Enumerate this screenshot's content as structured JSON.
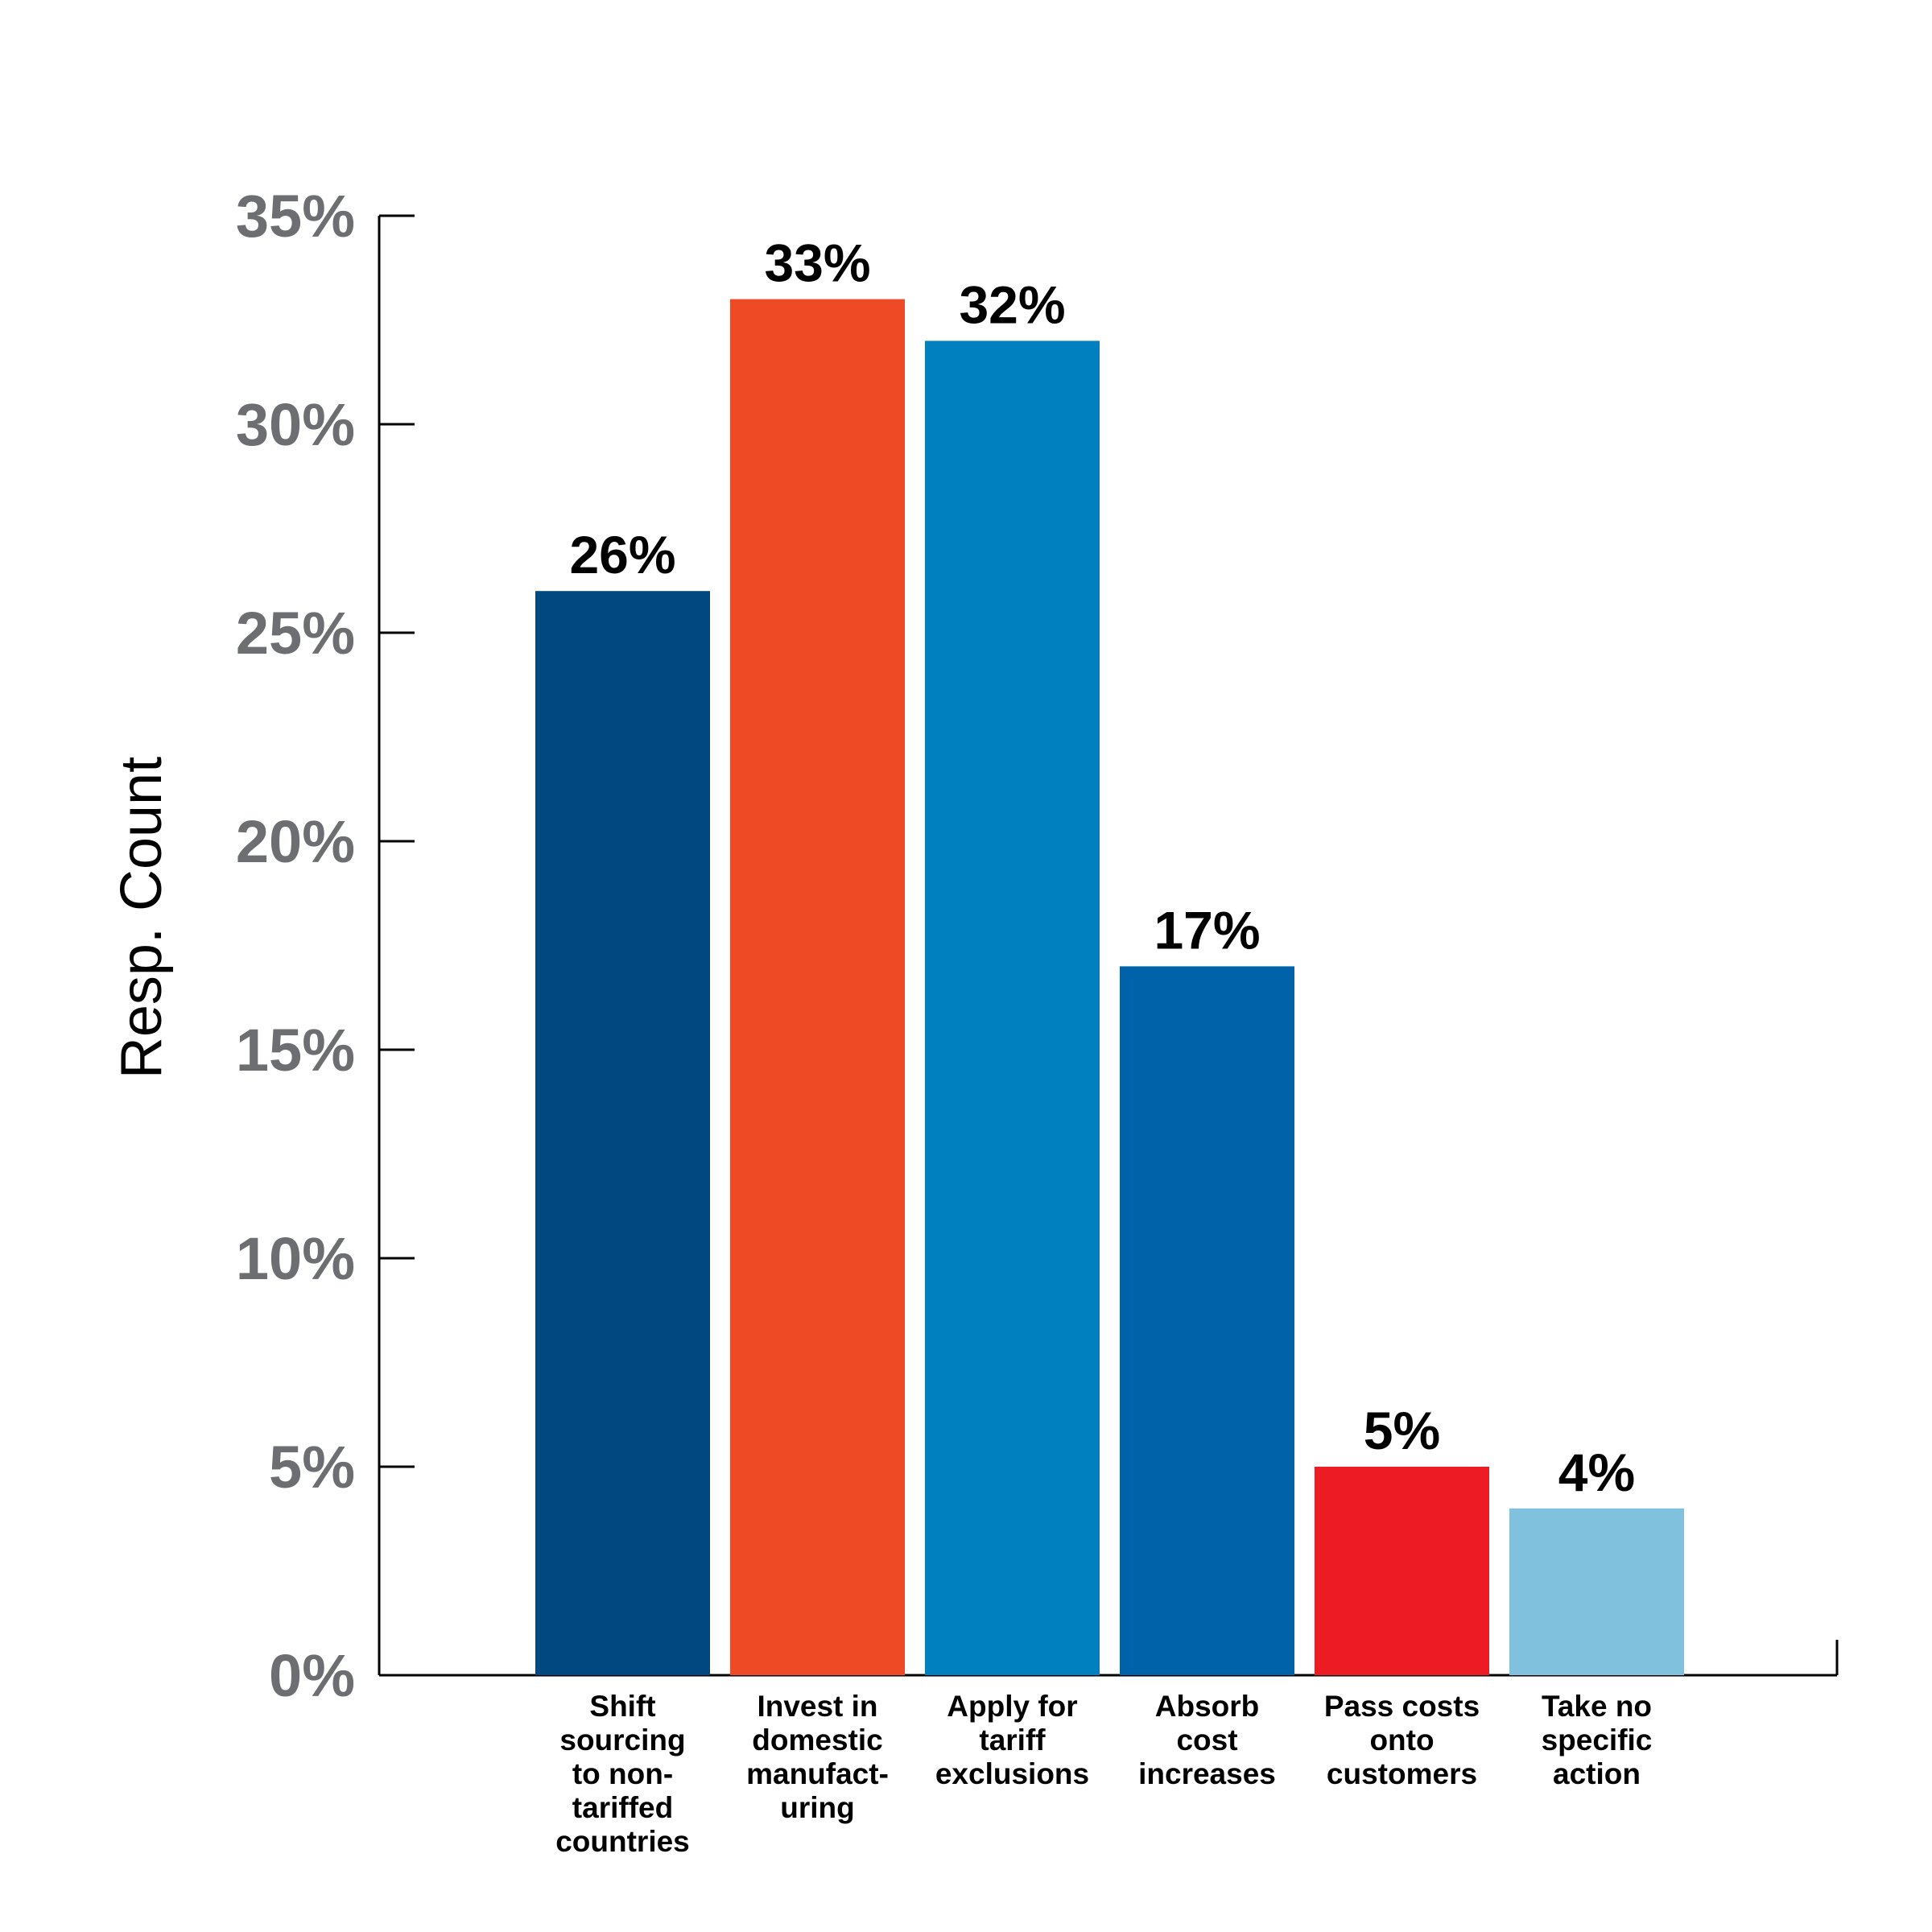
{
  "chart_data": {
    "type": "bar",
    "ylabel": "Resp. Count",
    "xlabel": "",
    "ylim": [
      0,
      35
    ],
    "y_ticks": [
      "0%",
      "5%",
      "10%",
      "15%",
      "20%",
      "25%",
      "30%",
      "35%"
    ],
    "categories": [
      [
        "Shift",
        "sourcing",
        "to non-",
        "tariffed",
        "countries"
      ],
      [
        "Invest in",
        "domestic",
        "manufact-",
        "uring"
      ],
      [
        "Apply for",
        "tariff",
        "exclusions"
      ],
      [
        "Absorb",
        "cost",
        "increases"
      ],
      [
        "Pass costs",
        "onto",
        "customers"
      ],
      [
        "Take no",
        "specific",
        "action"
      ]
    ],
    "values": [
      26,
      33,
      32,
      17,
      5,
      4
    ],
    "value_labels": [
      "26%",
      "33%",
      "32%",
      "17%",
      "5%",
      "4%"
    ],
    "colors": [
      "#00487f",
      "#ef4a26",
      "#0080bf",
      "#0062a8",
      "#ed1c24",
      "#80c1de"
    ],
    "grid": false,
    "legend": "none"
  }
}
